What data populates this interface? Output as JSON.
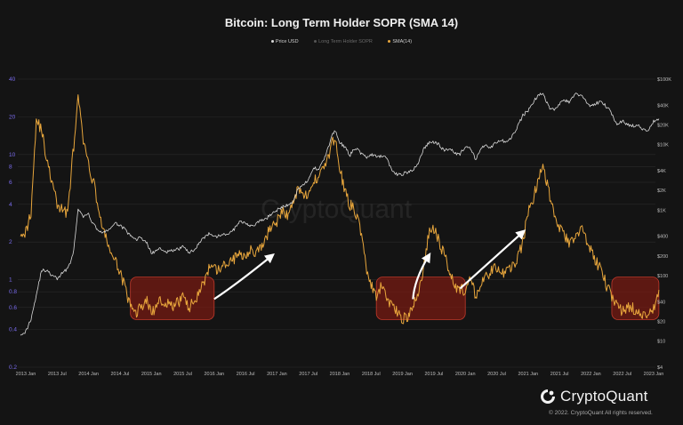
{
  "chart_data": {
    "type": "line",
    "title": "Bitcoin: Long Term Holder SOPR (SMA 14)",
    "legend": [
      "Price USD",
      "Long Term Holder SOPR",
      "SMA(14)"
    ],
    "legend_colors": [
      "#d8d8d8",
      "#555555",
      "#e8a63c"
    ],
    "y_left_scale": "log",
    "y_left_ticks": [
      "0.2",
      "0.4",
      "0.6",
      "0.8",
      "1",
      "2",
      "4",
      "6",
      "8",
      "10",
      "20",
      "40"
    ],
    "y_right_scale": "log",
    "y_right_ticks": [
      "$4",
      "$10",
      "$20",
      "$40",
      "$100",
      "$200",
      "$400",
      "$1K",
      "$2K",
      "$4K",
      "$10K",
      "$20K",
      "$40K",
      "$100K"
    ],
    "x_ticks": [
      "2013 Jan",
      "2013 Jul",
      "2014 Jan",
      "2014 Jul",
      "2015 Jan",
      "2015 Jul",
      "2016 Jan",
      "2016 Jul",
      "2017 Jan",
      "2017 Jul",
      "2018 Jan",
      "2018 Jul",
      "2019 Jan",
      "2019 Jul",
      "2020 Jan",
      "2020 Jul",
      "2021 Jan",
      "2021 Jul",
      "2022 Jan",
      "2022 Jul",
      "2023 Jan"
    ],
    "xlim": [
      "2012-11",
      "2023-04"
    ],
    "series": [
      {
        "name": "SMA(14)",
        "color": "#e8a63c",
        "x": [
          "2012-12",
          "2013-01",
          "2013-02",
          "2013-03",
          "2013-04",
          "2013-05",
          "2013-06",
          "2013-07",
          "2013-08",
          "2013-09",
          "2013-10",
          "2013-11",
          "2013-12",
          "2014-01",
          "2014-02",
          "2014-03",
          "2014-04",
          "2014-05",
          "2014-06",
          "2014-07",
          "2014-08",
          "2014-09",
          "2014-10",
          "2014-11",
          "2014-12",
          "2015-01",
          "2015-02",
          "2015-03",
          "2015-04",
          "2015-05",
          "2015-06",
          "2015-07",
          "2015-08",
          "2015-09",
          "2015-10",
          "2015-11",
          "2015-12",
          "2016-01",
          "2016-02",
          "2016-03",
          "2016-04",
          "2016-05",
          "2016-06",
          "2016-07",
          "2016-08",
          "2016-09",
          "2016-10",
          "2016-11",
          "2016-12",
          "2017-01",
          "2017-02",
          "2017-03",
          "2017-04",
          "2017-05",
          "2017-06",
          "2017-07",
          "2017-08",
          "2017-09",
          "2017-10",
          "2017-11",
          "2017-12",
          "2018-01",
          "2018-02",
          "2018-03",
          "2018-04",
          "2018-05",
          "2018-06",
          "2018-07",
          "2018-08",
          "2018-09",
          "2018-10",
          "2018-11",
          "2018-12",
          "2019-01",
          "2019-02",
          "2019-03",
          "2019-04",
          "2019-05",
          "2019-06",
          "2019-07",
          "2019-08",
          "2019-09",
          "2019-10",
          "2019-11",
          "2019-12",
          "2020-01",
          "2020-02",
          "2020-03",
          "2020-04",
          "2020-05",
          "2020-06",
          "2020-07",
          "2020-08",
          "2020-09",
          "2020-10",
          "2020-11",
          "2020-12",
          "2021-01",
          "2021-02",
          "2021-03",
          "2021-04",
          "2021-05",
          "2021-06",
          "2021-07",
          "2021-08",
          "2021-09",
          "2021-10",
          "2021-11",
          "2021-12",
          "2022-01",
          "2022-02",
          "2022-03",
          "2022-04",
          "2022-05",
          "2022-06",
          "2022-07",
          "2022-08",
          "2022-09",
          "2022-10",
          "2022-11",
          "2022-12",
          "2023-01",
          "2023-02"
        ],
        "values": [
          2.5,
          2.4,
          3.5,
          19,
          16,
          9,
          6,
          4,
          3.6,
          3.5,
          10,
          28,
          13,
          8,
          6,
          3.5,
          2.3,
          1.8,
          1.4,
          1.2,
          0.85,
          0.6,
          0.55,
          0.6,
          0.7,
          0.55,
          0.6,
          0.7,
          0.65,
          0.6,
          0.65,
          0.75,
          0.6,
          0.65,
          0.8,
          0.95,
          1.2,
          1.2,
          1.2,
          1.3,
          1.4,
          1.5,
          1.6,
          1.6,
          1.8,
          1.6,
          1.8,
          2.2,
          2.8,
          2.9,
          3.5,
          3.3,
          4,
          5.5,
          5,
          4.5,
          6,
          7,
          8,
          10,
          14,
          8,
          5,
          4,
          3.5,
          2.5,
          1.3,
          0.9,
          0.7,
          0.9,
          0.7,
          0.65,
          0.55,
          0.5,
          0.5,
          0.6,
          0.8,
          1.2,
          2.3,
          2.6,
          2,
          1.6,
          1.2,
          0.9,
          0.85,
          0.8,
          1,
          0.75,
          0.9,
          1.05,
          1.2,
          1.25,
          1.1,
          1.2,
          1.3,
          1.5,
          2,
          3.5,
          4.5,
          6.5,
          8,
          5,
          3.5,
          2.6,
          2.2,
          1.9,
          2.2,
          2.6,
          2.2,
          1.7,
          1.4,
          1.2,
          0.9,
          0.75,
          0.65,
          0.55,
          0.6,
          0.6,
          0.55,
          0.5,
          0.55,
          0.6,
          0.75
        ]
      },
      {
        "name": "Price USD",
        "color": "#d8d8d8",
        "x": [
          "2012-12",
          "2013-01",
          "2013-02",
          "2013-03",
          "2013-04",
          "2013-05",
          "2013-06",
          "2013-07",
          "2013-08",
          "2013-09",
          "2013-10",
          "2013-11",
          "2013-12",
          "2014-01",
          "2014-02",
          "2014-03",
          "2014-04",
          "2014-05",
          "2014-06",
          "2014-07",
          "2014-08",
          "2014-09",
          "2014-10",
          "2014-11",
          "2014-12",
          "2015-01",
          "2015-02",
          "2015-03",
          "2015-04",
          "2015-05",
          "2015-06",
          "2015-07",
          "2015-08",
          "2015-09",
          "2015-10",
          "2015-11",
          "2015-12",
          "2016-01",
          "2016-02",
          "2016-03",
          "2016-04",
          "2016-05",
          "2016-06",
          "2016-07",
          "2016-08",
          "2016-09",
          "2016-10",
          "2016-11",
          "2016-12",
          "2017-01",
          "2017-02",
          "2017-03",
          "2017-04",
          "2017-05",
          "2017-06",
          "2017-07",
          "2017-08",
          "2017-09",
          "2017-10",
          "2017-11",
          "2017-12",
          "2018-01",
          "2018-02",
          "2018-03",
          "2018-04",
          "2018-05",
          "2018-06",
          "2018-07",
          "2018-08",
          "2018-09",
          "2018-10",
          "2018-11",
          "2018-12",
          "2019-01",
          "2019-02",
          "2019-03",
          "2019-04",
          "2019-05",
          "2019-06",
          "2019-07",
          "2019-08",
          "2019-09",
          "2019-10",
          "2019-11",
          "2019-12",
          "2020-01",
          "2020-02",
          "2020-03",
          "2020-04",
          "2020-05",
          "2020-06",
          "2020-07",
          "2020-08",
          "2020-09",
          "2020-10",
          "2020-11",
          "2020-12",
          "2021-01",
          "2021-02",
          "2021-03",
          "2021-04",
          "2021-05",
          "2021-06",
          "2021-07",
          "2021-08",
          "2021-09",
          "2021-10",
          "2021-11",
          "2021-12",
          "2022-01",
          "2022-02",
          "2022-03",
          "2022-04",
          "2022-05",
          "2022-06",
          "2022-07",
          "2022-08",
          "2022-09",
          "2022-10",
          "2022-11",
          "2022-12",
          "2023-01",
          "2023-02"
        ],
        "values": [
          13,
          14,
          22,
          50,
          120,
          120,
          100,
          90,
          110,
          130,
          200,
          1000,
          800,
          850,
          600,
          480,
          450,
          520,
          620,
          600,
          500,
          400,
          360,
          380,
          330,
          220,
          240,
          260,
          230,
          240,
          250,
          280,
          230,
          235,
          310,
          380,
          430,
          380,
          410,
          420,
          450,
          530,
          680,
          650,
          580,
          610,
          700,
          740,
          900,
          1000,
          1100,
          1200,
          1300,
          2100,
          2500,
          2800,
          4400,
          4300,
          6000,
          10000,
          17000,
          11000,
          9000,
          7000,
          9000,
          7500,
          6400,
          7000,
          6500,
          6600,
          6300,
          4000,
          3500,
          3600,
          3800,
          4000,
          5300,
          8500,
          10500,
          11000,
          10000,
          8000,
          9000,
          7500,
          7200,
          9300,
          8500,
          6000,
          8800,
          9500,
          9200,
          11000,
          11500,
          10800,
          13700,
          19000,
          28000,
          33000,
          45000,
          58000,
          58000,
          37000,
          35000,
          42000,
          47000,
          44000,
          61000,
          57000,
          47000,
          38000,
          43000,
          45000,
          38000,
          30000,
          20000,
          23000,
          20000,
          19500,
          20000,
          16500,
          16800,
          23000,
          23500
        ]
      }
    ],
    "annotations": {
      "highlight_boxes": [
        {
          "from": "2014-09",
          "to": "2016-01",
          "y_range": [
            0.48,
            1.05
          ]
        },
        {
          "from": "2018-08",
          "to": "2020-01",
          "y_range": [
            0.48,
            1.05
          ]
        },
        {
          "from": "2022-05",
          "to": "2023-02",
          "y_range": [
            0.48,
            1.05
          ]
        }
      ],
      "arrows": [
        {
          "from": [
            "2016-01",
            0.7
          ],
          "to": [
            "2016-12",
            1.55
          ]
        },
        {
          "from": [
            "2019-03",
            0.7
          ],
          "to": [
            "2019-06",
            1.55
          ]
        },
        {
          "from": [
            "2019-12",
            0.85
          ],
          "to": [
            "2020-12",
            2.4
          ]
        }
      ]
    }
  },
  "watermark": "CryptoQuant",
  "brand": {
    "logo_text": "CryptoQuant",
    "copyright": "© 2022. CryptoQuant All rights reserved."
  }
}
